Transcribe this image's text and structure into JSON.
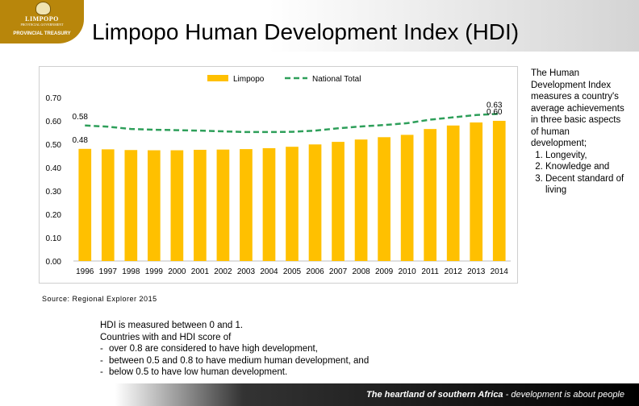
{
  "header": {
    "logo_name": "LIMPOPO",
    "logo_sub": "PROVINCIAL GOVERNMENT",
    "logo_dept": "PROVINCIAL TREASURY",
    "title": "Limpopo Human Development Index (HDI)"
  },
  "chart_data": {
    "type": "bar",
    "title": "",
    "categories": [
      "1996",
      "1997",
      "1998",
      "1999",
      "2000",
      "2001",
      "2002",
      "2003",
      "2004",
      "2005",
      "2006",
      "2007",
      "2008",
      "2009",
      "2010",
      "2011",
      "2012",
      "2013",
      "2014"
    ],
    "series": [
      {
        "name": "Limpopo",
        "kind": "bar",
        "color": "#ffc000",
        "values": [
          0.48,
          0.478,
          0.475,
          0.474,
          0.474,
          0.476,
          0.477,
          0.479,
          0.483,
          0.489,
          0.499,
          0.51,
          0.52,
          0.53,
          0.54,
          0.565,
          0.58,
          0.593,
          0.6
        ]
      },
      {
        "name": "National Total",
        "kind": "line",
        "color": "#2e9f5a",
        "values": [
          0.58,
          0.575,
          0.565,
          0.562,
          0.56,
          0.558,
          0.555,
          0.552,
          0.552,
          0.553,
          0.558,
          0.568,
          0.576,
          0.582,
          0.59,
          0.605,
          0.615,
          0.625,
          0.63
        ]
      }
    ],
    "ylim": [
      0,
      0.7
    ],
    "yticks": [
      "0.00",
      "0.10",
      "0.20",
      "0.30",
      "0.40",
      "0.50",
      "0.60",
      "0.70"
    ],
    "legend": "top-center",
    "annotations": [
      {
        "series": "National Total",
        "index": 0,
        "label": "0.58"
      },
      {
        "series": "Limpopo",
        "index": 0,
        "label": "0.48"
      },
      {
        "series": "National Total",
        "index": 18,
        "label": "0.63"
      },
      {
        "series": "Limpopo",
        "index": 18,
        "label": "0.60"
      }
    ],
    "xlabel": "",
    "ylabel": ""
  },
  "source": "Source: Regional Explorer 2015",
  "sidebar": {
    "intro": "The Human Development Index measures a country's average achievements in three basic aspects of human development;",
    "items": [
      "Longevity,",
      "Knowledge and",
      "Decent standard of living"
    ]
  },
  "notes": {
    "line1": "HDI is measured between 0 and 1.",
    "line2": "Countries with and HDI score of",
    "items": [
      "over 0.8 are considered to have high development,",
      "between 0.5 and 0.8 to have medium human development, and",
      "below 0.5 to have low human development."
    ]
  },
  "footer": {
    "bold": "The heartland of southern Africa",
    "rest": " - development is about people"
  }
}
